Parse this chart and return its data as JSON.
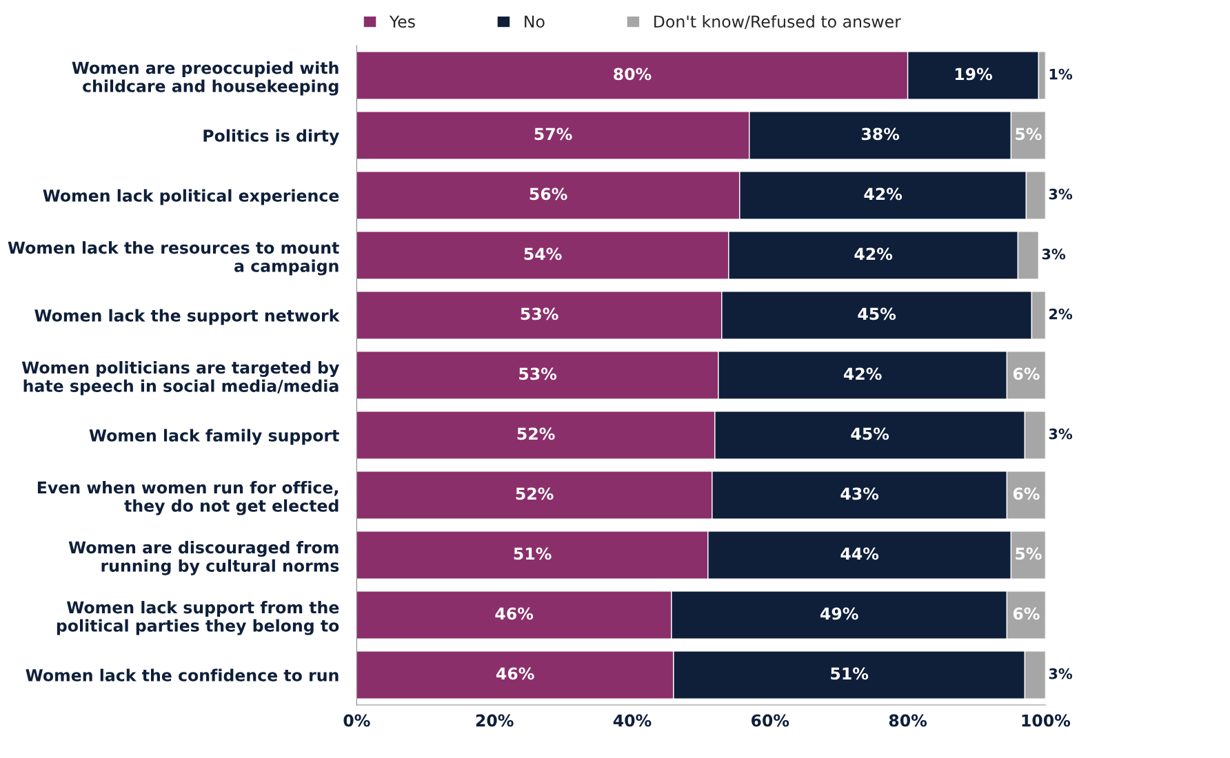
{
  "chart_data": {
    "type": "bar",
    "orientation": "horizontal",
    "stacked": true,
    "categories": [
      "Women are preoccupied with\nchildcare and housekeeping",
      "Politics is dirty",
      "Women lack political experience",
      "Women lack the resources to mount\na campaign",
      "Women lack the support network",
      "Women politicians are targeted by\nhate speech in social media/media",
      "Women lack family support",
      "Even when women run for office,\nthey do not get elected",
      "Women are discouraged from\nrunning by cultural norms",
      "Women lack support from the\npolitical parties they belong to",
      "Women lack the confidence to run"
    ],
    "series": [
      {
        "name": "Yes",
        "color": "#8b2f6b",
        "values": [
          80,
          57,
          55.6,
          54,
          53,
          52.5,
          52,
          51.6,
          51,
          45.7,
          46
        ],
        "value_labels": [
          "80%",
          "57%",
          "56%",
          "54%",
          "53%",
          "53%",
          "52%",
          "52%",
          "51%",
          "46%",
          "46%"
        ]
      },
      {
        "name": "No",
        "color": "#0f1f3a",
        "values": [
          19,
          38,
          41.6,
          42,
          45,
          41.9,
          45,
          42.8,
          44,
          48.7,
          51
        ],
        "value_labels": [
          "19%",
          "38%",
          "42%",
          "42%",
          "45%",
          "42%",
          "45%",
          "43%",
          "44%",
          "49%",
          "51%"
        ]
      },
      {
        "name": "Don't know/Refused to answer",
        "color": "#a6a6a6",
        "values": [
          1,
          5,
          2.8,
          3,
          2,
          5.6,
          3,
          5.6,
          5,
          5.6,
          3
        ],
        "value_labels": [
          "1%",
          "5%",
          "3%",
          "3%",
          "2%",
          "6%",
          "3%",
          "6%",
          "5%",
          "6%",
          "3%"
        ]
      }
    ],
    "xlim": [
      0,
      100
    ],
    "xticks": [
      {
        "value": 0,
        "label": "0%"
      },
      {
        "value": 20,
        "label": "20%"
      },
      {
        "value": 40,
        "label": "40%"
      },
      {
        "value": 60,
        "label": "60%"
      },
      {
        "value": 80,
        "label": "80%"
      },
      {
        "value": 100,
        "label": "100%"
      }
    ],
    "grid": false,
    "legend": "top"
  }
}
